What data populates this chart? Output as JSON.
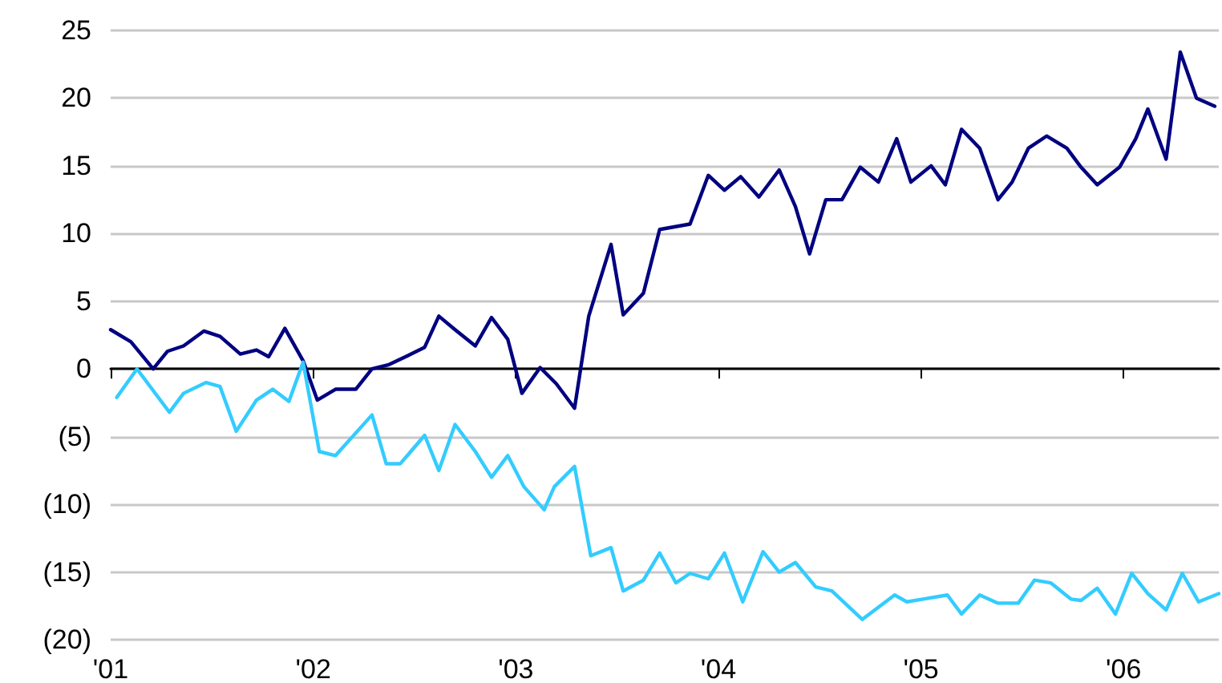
{
  "chart_data": {
    "type": "line",
    "xlim": [
      2001,
      2006.47
    ],
    "xticks": [
      {
        "value": 2001,
        "label": "'01"
      },
      {
        "value": 2002,
        "label": "'02"
      },
      {
        "value": 2003,
        "label": "'03"
      },
      {
        "value": 2004,
        "label": "'04"
      },
      {
        "value": 2005,
        "label": "'05"
      },
      {
        "value": 2006,
        "label": "'06"
      }
    ],
    "ylim": [
      -20,
      25
    ],
    "yticks": [
      {
        "value": -20,
        "label": "(20)"
      },
      {
        "value": -15,
        "label": "(15)"
      },
      {
        "value": -10,
        "label": "(10)"
      },
      {
        "value": -5,
        "label": "(5)"
      },
      0,
      5,
      10,
      15,
      20,
      25
    ],
    "grid": "y",
    "marker": "none",
    "line_style": "solid",
    "series": [
      {
        "color": "#000080",
        "x": [
          2001.0,
          2001.1,
          2001.21,
          2001.28,
          2001.36,
          2001.46,
          2001.54,
          2001.64,
          2001.72,
          2001.78,
          2001.86,
          2001.95,
          2002.02,
          2002.11,
          2002.21,
          2002.29,
          2002.37,
          2002.47,
          2002.55,
          2002.62,
          2002.7,
          2002.8,
          2002.88,
          2002.96,
          2003.03,
          2003.12,
          2003.2,
          2003.29,
          2003.36,
          2003.47,
          2003.53,
          2003.63,
          2003.71,
          2003.86,
          2003.95,
          2004.03,
          2004.11,
          2004.2,
          2004.3,
          2004.38,
          2004.45,
          2004.53,
          2004.61,
          2004.7,
          2004.79,
          2004.88,
          2004.95,
          2005.05,
          2005.12,
          2005.2,
          2005.29,
          2005.38,
          2005.45,
          2005.53,
          2005.62,
          2005.72,
          2005.79,
          2005.87,
          2005.98,
          2006.06,
          2006.12,
          2006.21,
          2006.28,
          2006.36,
          2006.45
        ],
        "values": [
          2.9,
          2.0,
          0,
          1.3,
          1.7,
          2.8,
          2.4,
          1.1,
          1.4,
          0.9,
          3.0,
          0.6,
          -2.3,
          -1.5,
          -1.5,
          0,
          0.3,
          1.0,
          1.6,
          3.9,
          2.9,
          1.7,
          3.8,
          2.2,
          -1.8,
          0.1,
          -1.1,
          -2.9,
          3.9,
          9.2,
          4.0,
          5.6,
          10.3,
          10.7,
          14.3,
          13.2,
          14.2,
          12.7,
          14.7,
          12.0,
          8.5,
          12.5,
          12.5,
          14.9,
          13.8,
          17.0,
          13.8,
          15.0,
          13.6,
          17.7,
          16.3,
          12.5,
          13.8,
          16.3,
          17.2,
          16.3,
          14.9,
          13.6,
          14.9,
          17.0,
          19.2,
          15.5,
          23.4,
          20.0,
          19.4
        ]
      },
      {
        "color": "#33ccff",
        "x": [
          2001.03,
          2001.13,
          2001.29,
          2001.36,
          2001.47,
          2001.54,
          2001.62,
          2001.72,
          2001.8,
          2001.88,
          2001.95,
          2002.03,
          2002.11,
          2002.29,
          2002.36,
          2002.43,
          2002.55,
          2002.62,
          2002.7,
          2002.8,
          2002.88,
          2002.96,
          2003.04,
          2003.14,
          2003.19,
          2003.29,
          2003.37,
          2003.47,
          2003.53,
          2003.63,
          2003.71,
          2003.79,
          2003.86,
          2003.95,
          2004.03,
          2004.12,
          2004.22,
          2004.3,
          2004.38,
          2004.48,
          2004.56,
          2004.71,
          2004.87,
          2004.93,
          2005.01,
          2005.13,
          2005.2,
          2005.29,
          2005.38,
          2005.48,
          2005.56,
          2005.64,
          2005.74,
          2005.79,
          2005.87,
          2005.96,
          2006.04,
          2006.12,
          2006.21,
          2006.29,
          2006.37,
          2006.47
        ],
        "values": [
          -2.1,
          0,
          -3.2,
          -1.8,
          -1.0,
          -1.3,
          -4.6,
          -2.3,
          -1.5,
          -2.4,
          0.5,
          -6.1,
          -6.4,
          -3.4,
          -7.0,
          -7.0,
          -4.9,
          -7.5,
          -4.1,
          -6.1,
          -8.0,
          -6.4,
          -8.7,
          -10.4,
          -8.7,
          -7.2,
          -13.8,
          -13.2,
          -16.4,
          -15.6,
          -13.6,
          -15.8,
          -15.1,
          -15.5,
          -13.6,
          -17.2,
          -13.5,
          -15.0,
          -14.3,
          -16.1,
          -16.4,
          -18.5,
          -16.7,
          -17.2,
          -17.0,
          -16.7,
          -18.1,
          -16.7,
          -17.3,
          -17.3,
          -15.6,
          -15.8,
          -17.0,
          -17.1,
          -16.2,
          -18.1,
          -15.1,
          -16.6,
          -17.8,
          -15.1,
          -17.2,
          -16.6
        ]
      }
    ]
  }
}
